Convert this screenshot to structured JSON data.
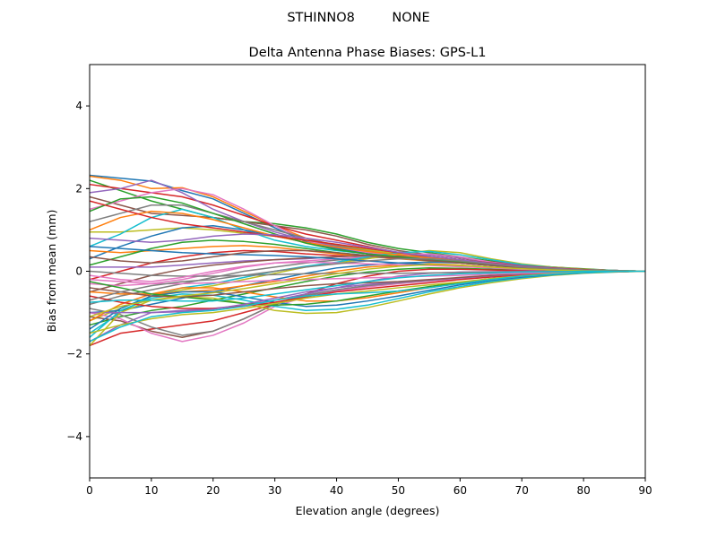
{
  "figure": {
    "suptitle": "STHINNO8         NONE"
  },
  "chart_data": {
    "type": "line",
    "title": "Delta Antenna Phase Biases: GPS-L1",
    "xlabel": "Elevation angle (degrees)",
    "ylabel": "Bias from mean (mm)",
    "xlim": [
      0,
      90
    ],
    "ylim": [
      -5,
      5
    ],
    "xticks": [
      0,
      10,
      20,
      30,
      40,
      50,
      60,
      70,
      80,
      90
    ],
    "yticks": [
      -4,
      -2,
      0,
      2,
      4
    ],
    "grid": false,
    "legend": "none",
    "x": [
      0,
      5,
      10,
      15,
      20,
      25,
      30,
      35,
      40,
      45,
      50,
      55,
      60,
      65,
      70,
      75,
      80,
      85,
      90
    ],
    "colors": [
      "#1f77b4",
      "#ff7f0e",
      "#2ca02c",
      "#d62728",
      "#9467bd",
      "#8c564b",
      "#e377c2",
      "#7f7f7f",
      "#bcbd22",
      "#17becf"
    ],
    "series": [
      {
        "values": [
          2.32,
          2.25,
          2.18,
          1.95,
          1.75,
          1.4,
          1.05,
          0.72,
          0.55,
          0.45,
          0.38,
          0.3,
          0.25,
          0.18,
          0.12,
          0.08,
          0.05,
          0.02,
          0.0
        ]
      },
      {
        "values": [
          2.3,
          2.2,
          2.0,
          2.02,
          1.8,
          1.45,
          1.1,
          0.8,
          0.62,
          0.5,
          0.42,
          0.35,
          0.28,
          0.2,
          0.13,
          0.08,
          0.05,
          0.02,
          0.0
        ]
      },
      {
        "values": [
          2.2,
          1.95,
          1.7,
          1.5,
          1.3,
          1.2,
          1.15,
          1.05,
          0.9,
          0.7,
          0.55,
          0.45,
          0.35,
          0.25,
          0.15,
          0.1,
          0.06,
          0.02,
          0.0
        ]
      },
      {
        "values": [
          2.1,
          2.0,
          1.9,
          1.8,
          1.6,
          1.35,
          1.1,
          0.9,
          0.75,
          0.6,
          0.45,
          0.35,
          0.28,
          0.2,
          0.13,
          0.08,
          0.04,
          0.02,
          0.0
        ]
      },
      {
        "values": [
          1.9,
          2.0,
          2.2,
          1.9,
          1.5,
          1.2,
          0.95,
          0.75,
          0.6,
          0.5,
          0.42,
          0.35,
          0.28,
          0.2,
          0.12,
          0.08,
          0.04,
          0.02,
          0.0
        ]
      },
      {
        "values": [
          1.8,
          1.6,
          1.4,
          1.35,
          1.3,
          1.2,
          1.1,
          1.0,
          0.85,
          0.65,
          0.5,
          0.4,
          0.32,
          0.23,
          0.15,
          0.1,
          0.05,
          0.02,
          0.0
        ]
      },
      {
        "values": [
          1.5,
          1.7,
          1.9,
          2.0,
          1.85,
          1.5,
          1.1,
          0.75,
          0.55,
          0.45,
          0.38,
          0.3,
          0.25,
          0.18,
          0.12,
          0.08,
          0.04,
          0.02,
          0.0
        ]
      },
      {
        "values": [
          1.2,
          1.4,
          1.6,
          1.6,
          1.4,
          1.2,
          1.0,
          0.8,
          0.62,
          0.5,
          0.4,
          0.32,
          0.26,
          0.18,
          0.12,
          0.08,
          0.04,
          0.02,
          0.0
        ]
      },
      {
        "values": [
          0.95,
          0.95,
          1.0,
          1.05,
          1.0,
          0.92,
          0.85,
          0.75,
          0.65,
          0.52,
          0.42,
          0.34,
          0.27,
          0.19,
          0.12,
          0.08,
          0.04,
          0.02,
          0.0
        ]
      },
      {
        "values": [
          0.6,
          0.9,
          1.3,
          1.5,
          1.3,
          1.0,
          0.75,
          0.6,
          0.5,
          0.42,
          0.35,
          0.28,
          0.22,
          0.16,
          0.1,
          0.07,
          0.04,
          0.02,
          0.0
        ]
      },
      {
        "values": [
          0.3,
          0.6,
          0.85,
          1.05,
          1.1,
          1.0,
          0.85,
          0.7,
          0.55,
          0.42,
          0.34,
          0.27,
          0.22,
          0.15,
          0.1,
          0.06,
          0.03,
          0.01,
          0.0
        ]
      },
      {
        "values": [
          0.5,
          0.45,
          0.5,
          0.55,
          0.6,
          0.62,
          0.58,
          0.5,
          0.42,
          0.35,
          0.3,
          0.25,
          0.2,
          0.14,
          0.09,
          0.06,
          0.03,
          0.01,
          0.0
        ]
      },
      {
        "values": [
          0.15,
          0.35,
          0.55,
          0.7,
          0.75,
          0.72,
          0.65,
          0.55,
          0.45,
          0.38,
          0.32,
          0.26,
          0.2,
          0.14,
          0.09,
          0.06,
          0.03,
          0.01,
          0.0
        ]
      },
      {
        "values": [
          -0.2,
          0.0,
          0.2,
          0.35,
          0.45,
          0.5,
          0.48,
          0.42,
          0.38,
          0.35,
          0.32,
          0.28,
          0.22,
          0.15,
          0.1,
          0.06,
          0.03,
          0.01,
          0.0
        ]
      },
      {
        "values": [
          0.1,
          0.1,
          0.1,
          0.15,
          0.2,
          0.25,
          0.28,
          0.3,
          0.35,
          0.38,
          0.4,
          0.4,
          0.33,
          0.22,
          0.14,
          0.08,
          0.04,
          0.02,
          0.0
        ]
      },
      {
        "values": [
          -0.5,
          -0.3,
          -0.1,
          0.05,
          0.15,
          0.22,
          0.28,
          0.32,
          0.35,
          0.38,
          0.38,
          0.35,
          0.28,
          0.2,
          0.12,
          0.07,
          0.03,
          0.01,
          0.0
        ]
      },
      {
        "values": [
          -0.3,
          -0.35,
          -0.3,
          -0.2,
          -0.05,
          0.1,
          0.2,
          0.25,
          0.3,
          0.35,
          0.4,
          0.42,
          0.35,
          0.22,
          0.12,
          0.07,
          0.04,
          0.02,
          0.0
        ]
      },
      {
        "values": [
          -0.8,
          -0.6,
          -0.45,
          -0.3,
          -0.15,
          0.0,
          0.1,
          0.2,
          0.27,
          0.32,
          0.35,
          0.33,
          0.28,
          0.2,
          0.12,
          0.07,
          0.03,
          0.01,
          0.0
        ]
      },
      {
        "values": [
          -1.2,
          -0.9,
          -0.6,
          -0.45,
          -0.35,
          -0.2,
          -0.05,
          0.1,
          0.2,
          0.3,
          0.42,
          0.5,
          0.45,
          0.3,
          0.18,
          0.1,
          0.05,
          0.02,
          0.0
        ]
      },
      {
        "values": [
          -1.5,
          -1.0,
          -0.6,
          -0.4,
          -0.3,
          -0.15,
          0.0,
          0.12,
          0.22,
          0.35,
          0.45,
          0.48,
          0.4,
          0.28,
          0.16,
          0.09,
          0.04,
          0.02,
          0.0
        ]
      },
      {
        "values": [
          -1.0,
          -0.95,
          -0.8,
          -0.65,
          -0.5,
          -0.35,
          -0.2,
          -0.05,
          0.08,
          0.15,
          0.2,
          0.22,
          0.2,
          0.14,
          0.09,
          0.05,
          0.02,
          0.01,
          0.0
        ]
      },
      {
        "values": [
          -0.5,
          -0.55,
          -0.55,
          -0.5,
          -0.45,
          -0.35,
          -0.25,
          -0.12,
          0.0,
          0.1,
          0.15,
          0.18,
          0.15,
          0.1,
          0.06,
          0.03,
          0.01,
          0.0,
          0.0
        ]
      },
      {
        "values": [
          -1.3,
          -1.1,
          -0.95,
          -0.85,
          -0.7,
          -0.55,
          -0.4,
          -0.25,
          -0.12,
          -0.02,
          0.05,
          0.08,
          0.07,
          0.05,
          0.03,
          0.02,
          0.01,
          0.0,
          0.0
        ]
      },
      {
        "values": [
          -1.8,
          -1.5,
          -1.4,
          -1.3,
          -1.2,
          -1.0,
          -0.8,
          -0.55,
          -0.3,
          -0.12,
          0.0,
          0.05,
          0.05,
          0.03,
          0.02,
          0.01,
          0.0,
          0.0,
          0.0
        ]
      },
      {
        "values": [
          -1.7,
          -1.3,
          -1.0,
          -0.95,
          -0.9,
          -0.82,
          -0.7,
          -0.55,
          -0.4,
          -0.25,
          -0.12,
          -0.05,
          -0.02,
          -0.01,
          0.0,
          0.0,
          0.0,
          0.0,
          0.0
        ]
      },
      {
        "values": [
          -1.1,
          -1.2,
          -1.45,
          -1.6,
          -1.45,
          -1.15,
          -0.8,
          -0.6,
          -0.45,
          -0.35,
          -0.28,
          -0.22,
          -0.17,
          -0.12,
          -0.08,
          -0.05,
          -0.02,
          -0.01,
          0.0
        ]
      },
      {
        "values": [
          -1.0,
          -1.15,
          -1.5,
          -1.7,
          -1.55,
          -1.25,
          -0.85,
          -0.62,
          -0.48,
          -0.38,
          -0.3,
          -0.24,
          -0.18,
          -0.13,
          -0.08,
          -0.05,
          -0.02,
          -0.01,
          0.0
        ]
      },
      {
        "values": [
          -0.9,
          -1.05,
          -1.35,
          -1.55,
          -1.45,
          -1.15,
          -0.8,
          -0.58,
          -0.45,
          -0.35,
          -0.28,
          -0.22,
          -0.16,
          -0.11,
          -0.07,
          -0.04,
          -0.02,
          -0.01,
          0.0
        ]
      },
      {
        "values": [
          -1.8,
          -1.0,
          -0.7,
          -0.62,
          -0.65,
          -0.78,
          -0.95,
          -1.02,
          -1.0,
          -0.88,
          -0.72,
          -0.55,
          -0.4,
          -0.28,
          -0.18,
          -0.1,
          -0.05,
          -0.02,
          0.0
        ]
      },
      {
        "values": [
          -1.6,
          -0.95,
          -0.65,
          -0.55,
          -0.58,
          -0.7,
          -0.85,
          -0.95,
          -0.92,
          -0.82,
          -0.66,
          -0.5,
          -0.37,
          -0.25,
          -0.16,
          -0.09,
          -0.04,
          -0.02,
          0.0
        ]
      },
      {
        "values": [
          -1.4,
          -0.9,
          -0.6,
          -0.5,
          -0.5,
          -0.62,
          -0.75,
          -0.85,
          -0.82,
          -0.72,
          -0.6,
          -0.46,
          -0.33,
          -0.22,
          -0.14,
          -0.08,
          -0.04,
          -0.01,
          0.0
        ]
      },
      {
        "values": [
          -1.2,
          -0.8,
          -0.55,
          -0.4,
          -0.4,
          -0.5,
          -0.62,
          -0.72,
          -0.72,
          -0.64,
          -0.52,
          -0.4,
          -0.29,
          -0.2,
          -0.12,
          -0.07,
          -0.03,
          -0.01,
          0.0
        ]
      },
      {
        "values": [
          -0.25,
          -0.4,
          -0.55,
          -0.62,
          -0.7,
          -0.78,
          -0.82,
          -0.8,
          -0.72,
          -0.6,
          -0.48,
          -0.37,
          -0.27,
          -0.18,
          -0.11,
          -0.06,
          -0.03,
          -0.01,
          0.0
        ]
      },
      {
        "values": [
          -0.6,
          -0.75,
          -0.85,
          -0.9,
          -0.9,
          -0.85,
          -0.75,
          -0.62,
          -0.5,
          -0.42,
          -0.35,
          -0.28,
          -0.2,
          -0.14,
          -0.09,
          -0.05,
          -0.02,
          -0.01,
          0.0
        ]
      },
      {
        "values": [
          -1.0,
          -1.0,
          -1.0,
          -0.98,
          -0.92,
          -0.8,
          -0.65,
          -0.5,
          -0.4,
          -0.32,
          -0.26,
          -0.21,
          -0.16,
          -0.11,
          -0.07,
          -0.04,
          -0.02,
          -0.01,
          0.0
        ]
      },
      {
        "values": [
          -0.4,
          -0.5,
          -0.6,
          -0.62,
          -0.58,
          -0.5,
          -0.42,
          -0.35,
          -0.3,
          -0.28,
          -0.25,
          -0.2,
          -0.15,
          -0.1,
          -0.06,
          -0.04,
          -0.02,
          -0.01,
          0.0
        ]
      },
      {
        "values": [
          -0.2,
          -0.25,
          -0.3,
          -0.3,
          -0.28,
          -0.25,
          -0.22,
          -0.2,
          -0.18,
          -0.16,
          -0.14,
          -0.12,
          -0.1,
          -0.07,
          -0.05,
          -0.03,
          -0.01,
          0.0,
          0.0
        ]
      },
      {
        "values": [
          0.0,
          -0.05,
          -0.1,
          -0.12,
          -0.12,
          -0.1,
          -0.08,
          -0.06,
          -0.05,
          -0.05,
          -0.05,
          -0.04,
          -0.03,
          -0.02,
          -0.01,
          -0.01,
          0.0,
          0.0,
          0.0
        ]
      },
      {
        "values": [
          -1.5,
          -1.3,
          -1.15,
          -1.05,
          -1.0,
          -0.9,
          -0.78,
          -0.65,
          -0.55,
          -0.48,
          -0.4,
          -0.33,
          -0.26,
          -0.18,
          -0.11,
          -0.06,
          -0.03,
          -0.01,
          0.0
        ]
      },
      {
        "values": [
          -1.7,
          -1.35,
          -1.1,
          -1.0,
          -0.95,
          -0.85,
          -0.7,
          -0.6,
          -0.55,
          -0.52,
          -0.48,
          -0.4,
          -0.3,
          -0.2,
          -0.12,
          -0.07,
          -0.03,
          -0.01,
          0.0
        ]
      },
      {
        "values": [
          0.6,
          0.55,
          0.5,
          0.45,
          0.42,
          0.4,
          0.38,
          0.35,
          0.3,
          0.25,
          0.2,
          0.16,
          0.12,
          0.08,
          0.05,
          0.03,
          0.01,
          0.0,
          0.0
        ]
      },
      {
        "values": [
          1.0,
          1.3,
          1.45,
          1.4,
          1.25,
          1.05,
          0.85,
          0.7,
          0.58,
          0.48,
          0.4,
          0.32,
          0.25,
          0.17,
          0.11,
          0.07,
          0.03,
          0.01,
          0.0
        ]
      },
      {
        "values": [
          1.45,
          1.75,
          1.8,
          1.65,
          1.4,
          1.15,
          0.9,
          0.68,
          0.52,
          0.42,
          0.35,
          0.28,
          0.22,
          0.16,
          0.1,
          0.06,
          0.03,
          0.01,
          0.0
        ]
      },
      {
        "values": [
          1.7,
          1.5,
          1.3,
          1.15,
          1.05,
          0.95,
          0.85,
          0.75,
          0.65,
          0.55,
          0.45,
          0.36,
          0.28,
          0.2,
          0.13,
          0.08,
          0.04,
          0.01,
          0.0
        ]
      },
      {
        "values": [
          0.8,
          0.75,
          0.7,
          0.75,
          0.85,
          0.9,
          0.88,
          0.8,
          0.7,
          0.58,
          0.46,
          0.36,
          0.28,
          0.19,
          0.12,
          0.07,
          0.03,
          0.01,
          0.0
        ]
      },
      {
        "values": [
          0.35,
          0.25,
          0.2,
          0.25,
          0.35,
          0.45,
          0.5,
          0.5,
          0.45,
          0.38,
          0.32,
          0.26,
          0.2,
          0.14,
          0.09,
          0.05,
          0.02,
          0.01,
          0.0
        ]
      },
      {
        "values": [
          -0.1,
          -0.2,
          -0.25,
          -0.15,
          0.0,
          0.12,
          0.2,
          0.22,
          0.2,
          0.18,
          0.16,
          0.14,
          0.11,
          0.08,
          0.05,
          0.03,
          0.01,
          0.0,
          0.0
        ]
      },
      {
        "values": [
          -0.7,
          -0.5,
          -0.35,
          -0.25,
          -0.2,
          -0.1,
          0.0,
          0.1,
          0.18,
          0.25,
          0.3,
          0.3,
          0.25,
          0.17,
          0.1,
          0.06,
          0.03,
          0.01,
          0.0
        ]
      },
      {
        "values": [
          -1.1,
          -0.85,
          -0.7,
          -0.6,
          -0.52,
          -0.42,
          -0.3,
          -0.18,
          -0.06,
          0.05,
          0.12,
          0.16,
          0.14,
          0.1,
          0.06,
          0.03,
          0.01,
          0.0,
          0.0
        ]
      },
      {
        "values": [
          -0.75,
          -0.7,
          -0.7,
          -0.72,
          -0.72,
          -0.65,
          -0.55,
          -0.45,
          -0.35,
          -0.25,
          -0.16,
          -0.1,
          -0.06,
          -0.04,
          -0.02,
          -0.01,
          0.0,
          0.0,
          0.0
        ]
      }
    ]
  }
}
